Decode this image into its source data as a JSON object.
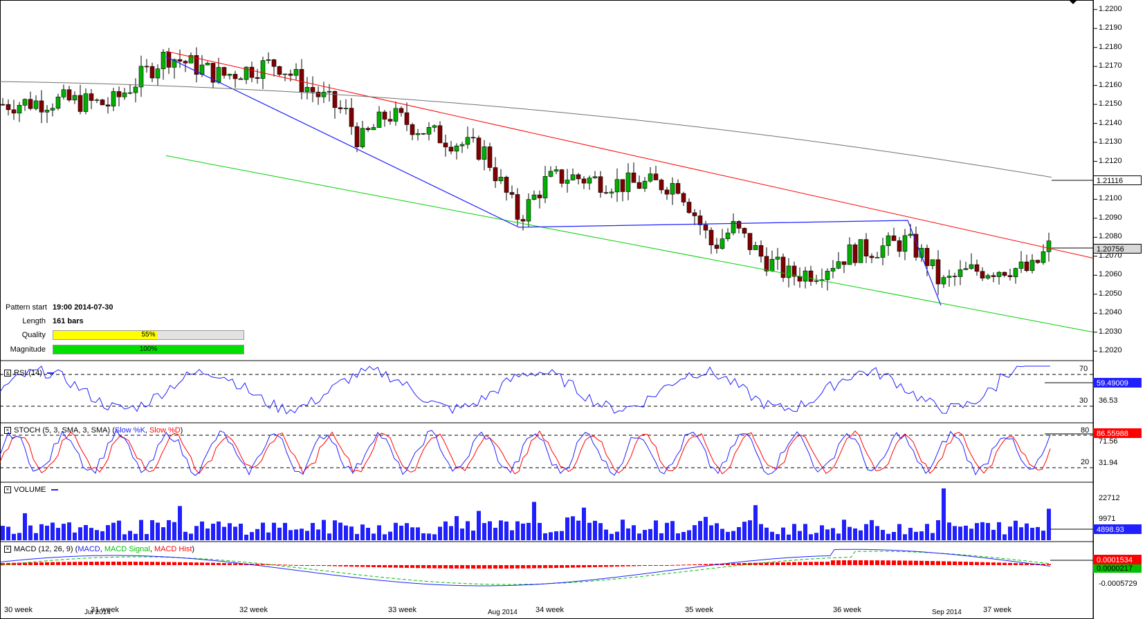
{
  "pattern_info": {
    "start_label": "Pattern start",
    "start_value": "19:00 2014-07-30",
    "length_label": "Length",
    "length_value": "161 bars",
    "quality_label": "Quality",
    "quality_value": "55%",
    "quality_fraction": 0.55,
    "magnitude_label": "Magnitude",
    "magnitude_value": "100%",
    "magnitude_fraction": 1.0
  },
  "colors": {
    "bull": "#00b000",
    "bear": "#800000",
    "resistance": "#ff0000",
    "support": "#00d000",
    "pattern": "#2020ff",
    "ma": "#707070",
    "quality": "#ffff00",
    "magnitude": "#00e000"
  },
  "price_axis": {
    "ticks": [
      "1.2200",
      "1.2190",
      "1.2180",
      "1.2170",
      "1.2160",
      "1.2150",
      "1.2140",
      "1.2130",
      "1.2120",
      "1.2110",
      "1.2100",
      "1.2090",
      "1.2080",
      "1.2070",
      "1.2060",
      "1.2050",
      "1.2040",
      "1.2030",
      "1.2020"
    ],
    "ma_tag": "1.21116",
    "last_tag": "1.20756"
  },
  "rsi": {
    "label": "RSI (14)",
    "levels": [
      "70",
      "30"
    ],
    "extra": "36.53",
    "current": "59.49009"
  },
  "stoch": {
    "label_prefix": "STOCH (5, 3, SMA, 3, SMA) (",
    "k_label": "Slow %K",
    "sep": ", ",
    "d_label": "Slow %D",
    "label_suffix": ")",
    "levels": [
      "80",
      "20"
    ],
    "extra1": "71.56",
    "extra2": "31.94",
    "current": "86.55988"
  },
  "volume": {
    "label": "VOLUME",
    "ticks": [
      "22712",
      "9971"
    ],
    "current": "4898.93"
  },
  "macd": {
    "label_prefix": "MACD (12, 26, 9) (",
    "main_label": "MACD",
    "sep1": ", ",
    "signal_label": "MACD Signal",
    "sep2": ", ",
    "hist_label": "MACD Hist",
    "label_suffix": ")",
    "current": "0.0001534",
    "hidden": "0.0000217",
    "tick": "-0.0005729"
  },
  "time_axis": {
    "weeks": [
      "30 week",
      "31 week",
      "32 week",
      "33 week",
      "34 week",
      "35 week",
      "36 week",
      "37 week"
    ],
    "months": [
      "Jul 2014",
      "Aug 2014",
      "Sep 2014"
    ]
  },
  "chart_data": [
    {
      "type": "candlestick",
      "title": "",
      "ylim": [
        1.2015,
        1.2205
      ],
      "pattern": "descending channel",
      "resistance_line": {
        "from": 1.2178,
        "to": 1.2069
      },
      "support_line": {
        "from": 1.2123,
        "to": 1.203
      },
      "moving_average": {
        "from": 1.2162,
        "to": 1.21116
      },
      "last_price": 1.20756,
      "low": 1.2046,
      "high": 1.2178
    },
    {
      "type": "line",
      "name": "RSI (14)",
      "levels": [
        70,
        30
      ],
      "last": 59.49
    },
    {
      "type": "line",
      "name": "STOCH (5, 3, SMA, 3, SMA)",
      "levels": [
        80,
        20
      ],
      "last": 86.56
    },
    {
      "type": "bar",
      "name": "VOLUME",
      "max": 22712,
      "last": 4898.93
    },
    {
      "type": "line",
      "name": "MACD (12, 26, 9)",
      "last": 0.0001534
    }
  ]
}
